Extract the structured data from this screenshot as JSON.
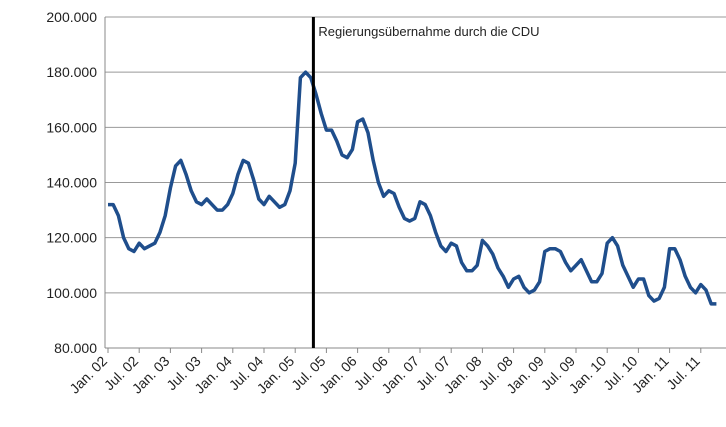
{
  "chart_data": {
    "type": "line",
    "categories": [
      "Jan. 02",
      null,
      null,
      null,
      null,
      null,
      "Jul. 02",
      null,
      null,
      null,
      null,
      null,
      "Jan. 03",
      null,
      null,
      null,
      null,
      null,
      "Jul. 03",
      null,
      null,
      null,
      null,
      null,
      "Jan. 04",
      null,
      null,
      null,
      null,
      null,
      "Jul. 04",
      null,
      null,
      null,
      null,
      null,
      "Jan. 05",
      null,
      null,
      null,
      null,
      null,
      "Jul. 05",
      null,
      null,
      null,
      null,
      null,
      "Jan. 06",
      null,
      null,
      null,
      null,
      null,
      "Jul. 06",
      null,
      null,
      null,
      null,
      null,
      "Jan. 07",
      null,
      null,
      null,
      null,
      null,
      "Jul. 07",
      null,
      null,
      null,
      null,
      null,
      "Jan. 08",
      null,
      null,
      null,
      null,
      null,
      "Jul. 08",
      null,
      null,
      null,
      null,
      null,
      "Jan. 09",
      null,
      null,
      null,
      null,
      null,
      "Jul. 09",
      null,
      null,
      null,
      null,
      null,
      "Jan. 10",
      null,
      null,
      null,
      null,
      null,
      "Jul. 10",
      null,
      null,
      null,
      null,
      null,
      "Jan. 11",
      null,
      null,
      null,
      null,
      null,
      "Jul. 11",
      null,
      null,
      null
    ],
    "series": [
      {
        "color": "#1f4e8c",
        "values": [
          132000,
          132000,
          128000,
          120000,
          116000,
          115000,
          118000,
          116000,
          117000,
          118000,
          122000,
          128000,
          138000,
          146000,
          148000,
          143000,
          137000,
          133000,
          132000,
          134000,
          132000,
          130000,
          130000,
          132000,
          136000,
          143000,
          148000,
          147000,
          141000,
          134000,
          132000,
          135000,
          133000,
          131000,
          132000,
          137000,
          147000,
          178000,
          180000,
          178000,
          172000,
          165000,
          159000,
          159000,
          155000,
          150000,
          149000,
          152000,
          162000,
          163000,
          158000,
          148000,
          140000,
          135000,
          137000,
          136000,
          131000,
          127000,
          126000,
          127000,
          133000,
          132000,
          128000,
          122000,
          117000,
          115000,
          118000,
          117000,
          111000,
          108000,
          108000,
          110000,
          119000,
          117000,
          114000,
          109000,
          106000,
          102000,
          105000,
          106000,
          102000,
          100000,
          101000,
          104000,
          115000,
          116000,
          116000,
          115000,
          111000,
          108000,
          110000,
          112000,
          108000,
          104000,
          104000,
          107000,
          118000,
          120000,
          117000,
          110000,
          106000,
          102000,
          105000,
          105000,
          99000,
          97000,
          98000,
          102000,
          116000,
          116000,
          112000,
          106000,
          102000,
          100000,
          103000,
          101000,
          96000,
          96000
        ]
      }
    ],
    "ylim": [
      80000,
      200000
    ],
    "yticks": [
      {
        "value": 80000,
        "label": "80.000"
      },
      {
        "value": 100000,
        "label": "100.000"
      },
      {
        "value": 120000,
        "label": "120.000"
      },
      {
        "value": 140000,
        "label": "140.000"
      },
      {
        "value": 160000,
        "label": "160.000"
      },
      {
        "value": 180000,
        "label": "180.000"
      },
      {
        "value": 200000,
        "label": "200.000"
      }
    ],
    "grid": true,
    "annotation": {
      "text": "Regierungsübernahme durch die CDU",
      "x": 39.5
    }
  }
}
